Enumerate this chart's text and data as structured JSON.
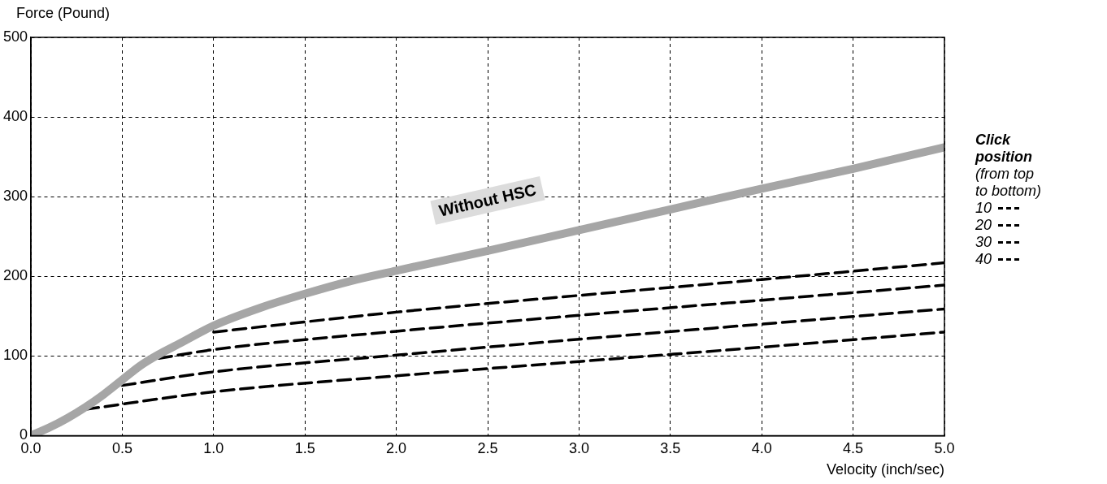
{
  "chart_data": {
    "type": "line",
    "xlabel": "Velocity (inch/sec)",
    "ylabel": "Force (Pound)",
    "legend_title": "Click position (from top to bottom)",
    "xlim": [
      0,
      5
    ],
    "xticks": [
      {
        "value": 0,
        "label": "0.0"
      },
      {
        "value": 0.5,
        "label": "0.5"
      },
      {
        "value": 1,
        "label": "1.0"
      },
      {
        "value": 1.5,
        "label": "1.5"
      },
      {
        "value": 2,
        "label": "2.0"
      },
      {
        "value": 2.5,
        "label": "2.5"
      },
      {
        "value": 3,
        "label": "3.0"
      },
      {
        "value": 3.5,
        "label": "3.5"
      },
      {
        "value": 4,
        "label": "4.0"
      },
      {
        "value": 4.5,
        "label": "4.5"
      },
      {
        "value": 5,
        "label": "5.0"
      }
    ],
    "ylim": [
      0,
      500
    ],
    "yticks": [
      0,
      100,
      200,
      300,
      400,
      500
    ],
    "grid": true,
    "legend": "right",
    "marker": "none",
    "series": [
      {
        "name": "Without HSC",
        "color": "#a6a6a6",
        "line_style": "solid",
        "x": [
          0,
          0.1,
          0.2,
          0.3,
          0.4,
          0.5,
          0.6,
          0.7,
          0.8,
          1.0,
          1.25,
          1.5,
          1.75,
          2.0,
          2.5,
          3.0,
          3.5,
          4.0,
          4.5,
          5.0
        ],
        "values": [
          0,
          10,
          22,
          36,
          52,
          70,
          88,
          102,
          114,
          138,
          160,
          178,
          194,
          207,
          232,
          258,
          284,
          310,
          335,
          362
        ]
      },
      {
        "name": "10",
        "color": "#000000",
        "line_style": "dashed",
        "x": [
          1.0,
          2.0,
          3.0,
          4.0,
          5.0
        ],
        "values": [
          130,
          155,
          176,
          196,
          217
        ]
      },
      {
        "name": "20",
        "color": "#000000",
        "line_style": "dashed",
        "x": [
          0.7,
          1.0,
          2.0,
          3.0,
          4.0,
          5.0
        ],
        "values": [
          97,
          108,
          131,
          151,
          170,
          189
        ]
      },
      {
        "name": "30",
        "color": "#000000",
        "line_style": "dashed",
        "x": [
          0.5,
          1.0,
          2.0,
          3.0,
          4.0,
          5.0
        ],
        "values": [
          63,
          80,
          101,
          121,
          140,
          159
        ]
      },
      {
        "name": "40",
        "color": "#000000",
        "line_style": "dashed",
        "x": [
          0.3,
          1.0,
          2.0,
          3.0,
          4.0,
          5.0
        ],
        "values": [
          33,
          55,
          75,
          93,
          111,
          130
        ]
      }
    ]
  }
}
